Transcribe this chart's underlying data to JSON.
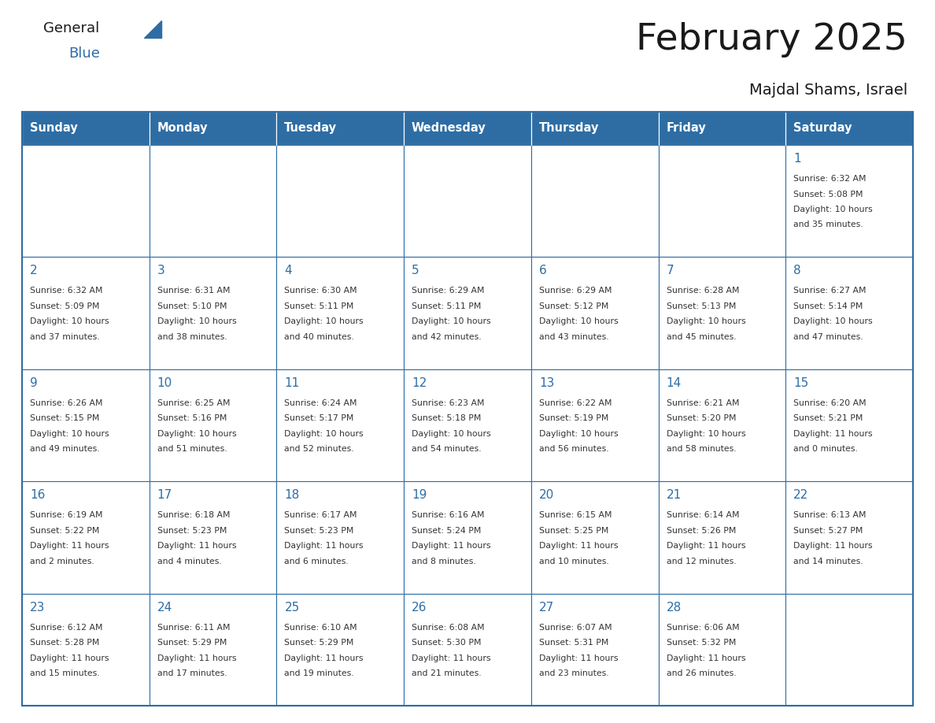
{
  "title": "February 2025",
  "subtitle": "Majdal Shams, Israel",
  "header_color": "#2E6DA4",
  "header_text_color": "#FFFFFF",
  "cell_bg_color": "#FFFFFF",
  "border_color": "#2E6DA4",
  "text_color": "#333333",
  "day_num_color": "#2E6DA4",
  "days_of_week": [
    "Sunday",
    "Monday",
    "Tuesday",
    "Wednesday",
    "Thursday",
    "Friday",
    "Saturday"
  ],
  "weeks": [
    [
      {
        "day": "",
        "info": ""
      },
      {
        "day": "",
        "info": ""
      },
      {
        "day": "",
        "info": ""
      },
      {
        "day": "",
        "info": ""
      },
      {
        "day": "",
        "info": ""
      },
      {
        "day": "",
        "info": ""
      },
      {
        "day": "1",
        "info": "Sunrise: 6:32 AM\nSunset: 5:08 PM\nDaylight: 10 hours\nand 35 minutes."
      }
    ],
    [
      {
        "day": "2",
        "info": "Sunrise: 6:32 AM\nSunset: 5:09 PM\nDaylight: 10 hours\nand 37 minutes."
      },
      {
        "day": "3",
        "info": "Sunrise: 6:31 AM\nSunset: 5:10 PM\nDaylight: 10 hours\nand 38 minutes."
      },
      {
        "day": "4",
        "info": "Sunrise: 6:30 AM\nSunset: 5:11 PM\nDaylight: 10 hours\nand 40 minutes."
      },
      {
        "day": "5",
        "info": "Sunrise: 6:29 AM\nSunset: 5:11 PM\nDaylight: 10 hours\nand 42 minutes."
      },
      {
        "day": "6",
        "info": "Sunrise: 6:29 AM\nSunset: 5:12 PM\nDaylight: 10 hours\nand 43 minutes."
      },
      {
        "day": "7",
        "info": "Sunrise: 6:28 AM\nSunset: 5:13 PM\nDaylight: 10 hours\nand 45 minutes."
      },
      {
        "day": "8",
        "info": "Sunrise: 6:27 AM\nSunset: 5:14 PM\nDaylight: 10 hours\nand 47 minutes."
      }
    ],
    [
      {
        "day": "9",
        "info": "Sunrise: 6:26 AM\nSunset: 5:15 PM\nDaylight: 10 hours\nand 49 minutes."
      },
      {
        "day": "10",
        "info": "Sunrise: 6:25 AM\nSunset: 5:16 PM\nDaylight: 10 hours\nand 51 minutes."
      },
      {
        "day": "11",
        "info": "Sunrise: 6:24 AM\nSunset: 5:17 PM\nDaylight: 10 hours\nand 52 minutes."
      },
      {
        "day": "12",
        "info": "Sunrise: 6:23 AM\nSunset: 5:18 PM\nDaylight: 10 hours\nand 54 minutes."
      },
      {
        "day": "13",
        "info": "Sunrise: 6:22 AM\nSunset: 5:19 PM\nDaylight: 10 hours\nand 56 minutes."
      },
      {
        "day": "14",
        "info": "Sunrise: 6:21 AM\nSunset: 5:20 PM\nDaylight: 10 hours\nand 58 minutes."
      },
      {
        "day": "15",
        "info": "Sunrise: 6:20 AM\nSunset: 5:21 PM\nDaylight: 11 hours\nand 0 minutes."
      }
    ],
    [
      {
        "day": "16",
        "info": "Sunrise: 6:19 AM\nSunset: 5:22 PM\nDaylight: 11 hours\nand 2 minutes."
      },
      {
        "day": "17",
        "info": "Sunrise: 6:18 AM\nSunset: 5:23 PM\nDaylight: 11 hours\nand 4 minutes."
      },
      {
        "day": "18",
        "info": "Sunrise: 6:17 AM\nSunset: 5:23 PM\nDaylight: 11 hours\nand 6 minutes."
      },
      {
        "day": "19",
        "info": "Sunrise: 6:16 AM\nSunset: 5:24 PM\nDaylight: 11 hours\nand 8 minutes."
      },
      {
        "day": "20",
        "info": "Sunrise: 6:15 AM\nSunset: 5:25 PM\nDaylight: 11 hours\nand 10 minutes."
      },
      {
        "day": "21",
        "info": "Sunrise: 6:14 AM\nSunset: 5:26 PM\nDaylight: 11 hours\nand 12 minutes."
      },
      {
        "day": "22",
        "info": "Sunrise: 6:13 AM\nSunset: 5:27 PM\nDaylight: 11 hours\nand 14 minutes."
      }
    ],
    [
      {
        "day": "23",
        "info": "Sunrise: 6:12 AM\nSunset: 5:28 PM\nDaylight: 11 hours\nand 15 minutes."
      },
      {
        "day": "24",
        "info": "Sunrise: 6:11 AM\nSunset: 5:29 PM\nDaylight: 11 hours\nand 17 minutes."
      },
      {
        "day": "25",
        "info": "Sunrise: 6:10 AM\nSunset: 5:29 PM\nDaylight: 11 hours\nand 19 minutes."
      },
      {
        "day": "26",
        "info": "Sunrise: 6:08 AM\nSunset: 5:30 PM\nDaylight: 11 hours\nand 21 minutes."
      },
      {
        "day": "27",
        "info": "Sunrise: 6:07 AM\nSunset: 5:31 PM\nDaylight: 11 hours\nand 23 minutes."
      },
      {
        "day": "28",
        "info": "Sunrise: 6:06 AM\nSunset: 5:32 PM\nDaylight: 11 hours\nand 26 minutes."
      },
      {
        "day": "",
        "info": ""
      }
    ]
  ]
}
